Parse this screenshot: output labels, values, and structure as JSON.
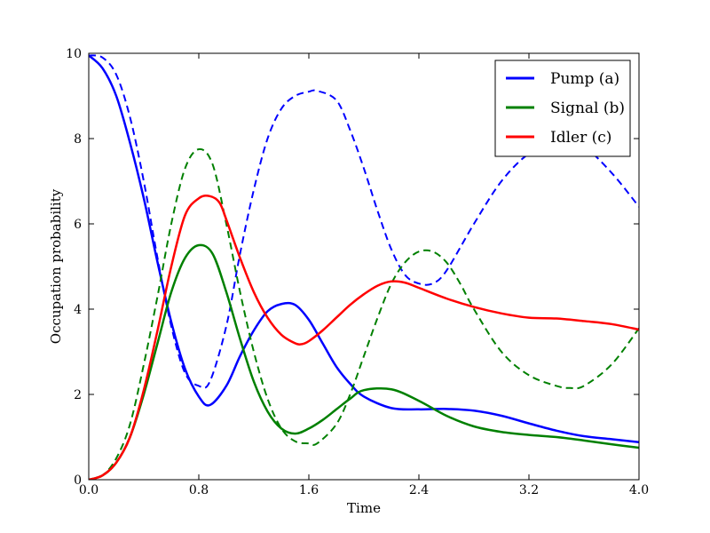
{
  "chart_data": {
    "type": "line",
    "xlabel": "Time",
    "ylabel": "Occupation probability",
    "xlim": [
      0.0,
      4.0
    ],
    "ylim": [
      0,
      10
    ],
    "xticks": [
      "0.0",
      "0.8",
      "1.6",
      "2.4",
      "3.2",
      "4.0"
    ],
    "xtick_values": [
      0.0,
      0.8,
      1.6,
      2.4,
      3.2,
      4.0
    ],
    "yticks": [
      "0",
      "2",
      "4",
      "6",
      "8",
      "10"
    ],
    "ytick_values": [
      0,
      2,
      4,
      6,
      8,
      10
    ],
    "grid": false,
    "legend_position": "top-right",
    "legend": [
      {
        "label": "Pump (a)",
        "color": "#0000ff"
      },
      {
        "label": "Signal (b)",
        "color": "#008000"
      },
      {
        "label": "Idler (c)",
        "color": "#ff0000"
      }
    ],
    "series": [
      {
        "name": "Pump (a)",
        "color": "#0000ff",
        "style": "solid",
        "x": [
          0.0,
          0.1,
          0.2,
          0.3,
          0.4,
          0.5,
          0.6,
          0.7,
          0.8,
          0.88,
          1.0,
          1.1,
          1.2,
          1.3,
          1.4,
          1.5,
          1.6,
          1.7,
          1.8,
          1.9,
          2.0,
          2.2,
          2.4,
          2.6,
          2.8,
          3.0,
          3.2,
          3.4,
          3.6,
          3.8,
          4.0
        ],
        "y": [
          9.95,
          9.65,
          9.0,
          7.9,
          6.6,
          5.1,
          3.7,
          2.6,
          1.95,
          1.75,
          2.2,
          2.9,
          3.5,
          3.95,
          4.12,
          4.1,
          3.75,
          3.2,
          2.65,
          2.25,
          1.95,
          1.68,
          1.65,
          1.66,
          1.62,
          1.5,
          1.32,
          1.15,
          1.02,
          0.95,
          0.88
        ]
      },
      {
        "name": "Pump (a)",
        "color": "#0000ff",
        "style": "dashed",
        "x": [
          0.0,
          0.1,
          0.2,
          0.3,
          0.4,
          0.5,
          0.6,
          0.7,
          0.8,
          0.88,
          1.0,
          1.1,
          1.2,
          1.3,
          1.4,
          1.5,
          1.6,
          1.66,
          1.8,
          1.9,
          2.0,
          2.1,
          2.2,
          2.3,
          2.4,
          2.5,
          2.6,
          2.8,
          3.0,
          3.2,
          3.4,
          3.6,
          3.8,
          4.0
        ],
        "y": [
          9.95,
          9.9,
          9.5,
          8.5,
          7.0,
          5.2,
          3.6,
          2.5,
          2.2,
          2.3,
          3.6,
          5.3,
          6.8,
          8.0,
          8.7,
          9.0,
          9.1,
          9.12,
          8.9,
          8.2,
          7.3,
          6.3,
          5.4,
          4.8,
          4.6,
          4.6,
          4.9,
          6.0,
          7.0,
          7.65,
          7.95,
          7.8,
          7.2,
          6.4
        ]
      },
      {
        "name": "Signal (b)",
        "color": "#008000",
        "style": "solid",
        "x": [
          0.0,
          0.1,
          0.2,
          0.3,
          0.4,
          0.5,
          0.6,
          0.7,
          0.8,
          0.9,
          1.0,
          1.1,
          1.2,
          1.3,
          1.4,
          1.5,
          1.6,
          1.7,
          1.8,
          1.9,
          2.0,
          2.2,
          2.4,
          2.6,
          2.8,
          3.0,
          3.2,
          3.4,
          3.6,
          3.8,
          4.0
        ],
        "y": [
          0.0,
          0.1,
          0.4,
          1.0,
          2.0,
          3.2,
          4.4,
          5.2,
          5.5,
          5.3,
          4.4,
          3.3,
          2.3,
          1.6,
          1.2,
          1.08,
          1.2,
          1.4,
          1.65,
          1.9,
          2.1,
          2.12,
          1.85,
          1.5,
          1.25,
          1.12,
          1.05,
          1.0,
          0.92,
          0.83,
          0.75
        ]
      },
      {
        "name": "Signal (b)",
        "color": "#008000",
        "style": "dashed",
        "x": [
          0.0,
          0.1,
          0.2,
          0.3,
          0.4,
          0.5,
          0.6,
          0.7,
          0.8,
          0.9,
          1.0,
          1.1,
          1.2,
          1.3,
          1.4,
          1.5,
          1.6,
          1.66,
          1.8,
          1.9,
          2.0,
          2.1,
          2.2,
          2.3,
          2.4,
          2.5,
          2.6,
          2.7,
          2.8,
          3.0,
          3.2,
          3.4,
          3.5,
          3.6,
          3.8,
          4.0
        ],
        "y": [
          0.0,
          0.1,
          0.5,
          1.3,
          2.7,
          4.3,
          6.0,
          7.3,
          7.75,
          7.4,
          6.0,
          4.4,
          3.0,
          1.9,
          1.2,
          0.9,
          0.85,
          0.85,
          1.3,
          2.0,
          2.9,
          3.8,
          4.6,
          5.1,
          5.35,
          5.35,
          5.1,
          4.6,
          4.0,
          3.0,
          2.45,
          2.2,
          2.15,
          2.2,
          2.7,
          3.55
        ]
      },
      {
        "name": "Idler (c)",
        "color": "#ff0000",
        "style": "solid",
        "x": [
          0.0,
          0.1,
          0.2,
          0.3,
          0.4,
          0.5,
          0.6,
          0.7,
          0.8,
          0.88,
          0.95,
          1.0,
          1.1,
          1.2,
          1.3,
          1.4,
          1.5,
          1.55,
          1.6,
          1.7,
          1.8,
          1.9,
          2.0,
          2.1,
          2.2,
          2.3,
          2.4,
          2.6,
          2.8,
          3.0,
          3.2,
          3.4,
          3.6,
          3.8,
          4.0
        ],
        "y": [
          0.0,
          0.1,
          0.4,
          1.0,
          2.1,
          3.5,
          5.0,
          6.2,
          6.6,
          6.65,
          6.5,
          6.1,
          5.2,
          4.4,
          3.8,
          3.4,
          3.2,
          3.18,
          3.25,
          3.5,
          3.8,
          4.1,
          4.35,
          4.55,
          4.65,
          4.62,
          4.5,
          4.25,
          4.05,
          3.9,
          3.8,
          3.78,
          3.72,
          3.65,
          3.52
        ]
      }
    ]
  }
}
